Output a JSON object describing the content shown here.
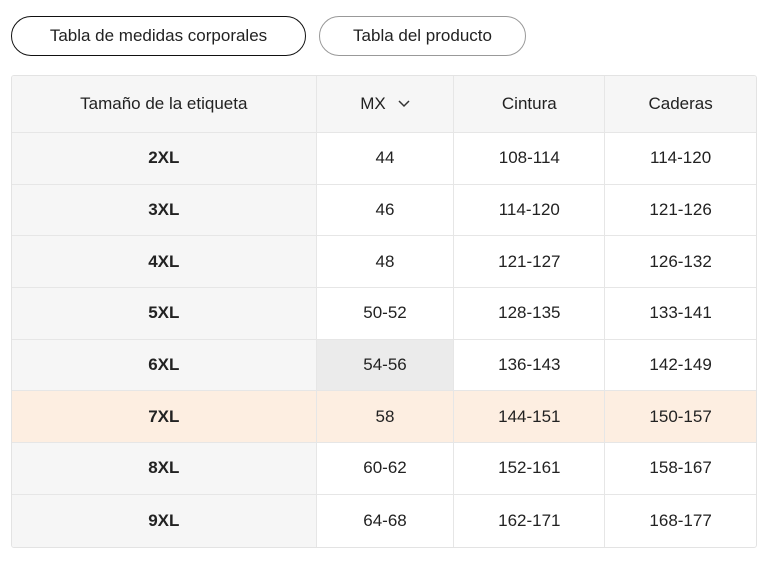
{
  "tabs": [
    "Tabla de medidas corporales",
    "Tabla del producto"
  ],
  "table": {
    "header": [
      "Tamaño de la etiqueta",
      "MX",
      "Cintura",
      "Caderas"
    ],
    "rows": [
      [
        "2XL",
        "44",
        "108-114",
        "114-120"
      ],
      [
        "3XL",
        "46",
        "114-120",
        "121-126"
      ],
      [
        "4XL",
        "48",
        "121-127",
        "126-132"
      ],
      [
        "5XL",
        "50-52",
        "128-135",
        "133-141"
      ],
      [
        "6XL",
        "54-56",
        "136-143",
        "142-149"
      ],
      [
        "7XL",
        "58",
        "144-151",
        "150-157"
      ],
      [
        "8XL",
        "60-62",
        "152-161",
        "158-167"
      ],
      [
        "9XL",
        "64-68",
        "162-171",
        "168-177"
      ]
    ]
  }
}
